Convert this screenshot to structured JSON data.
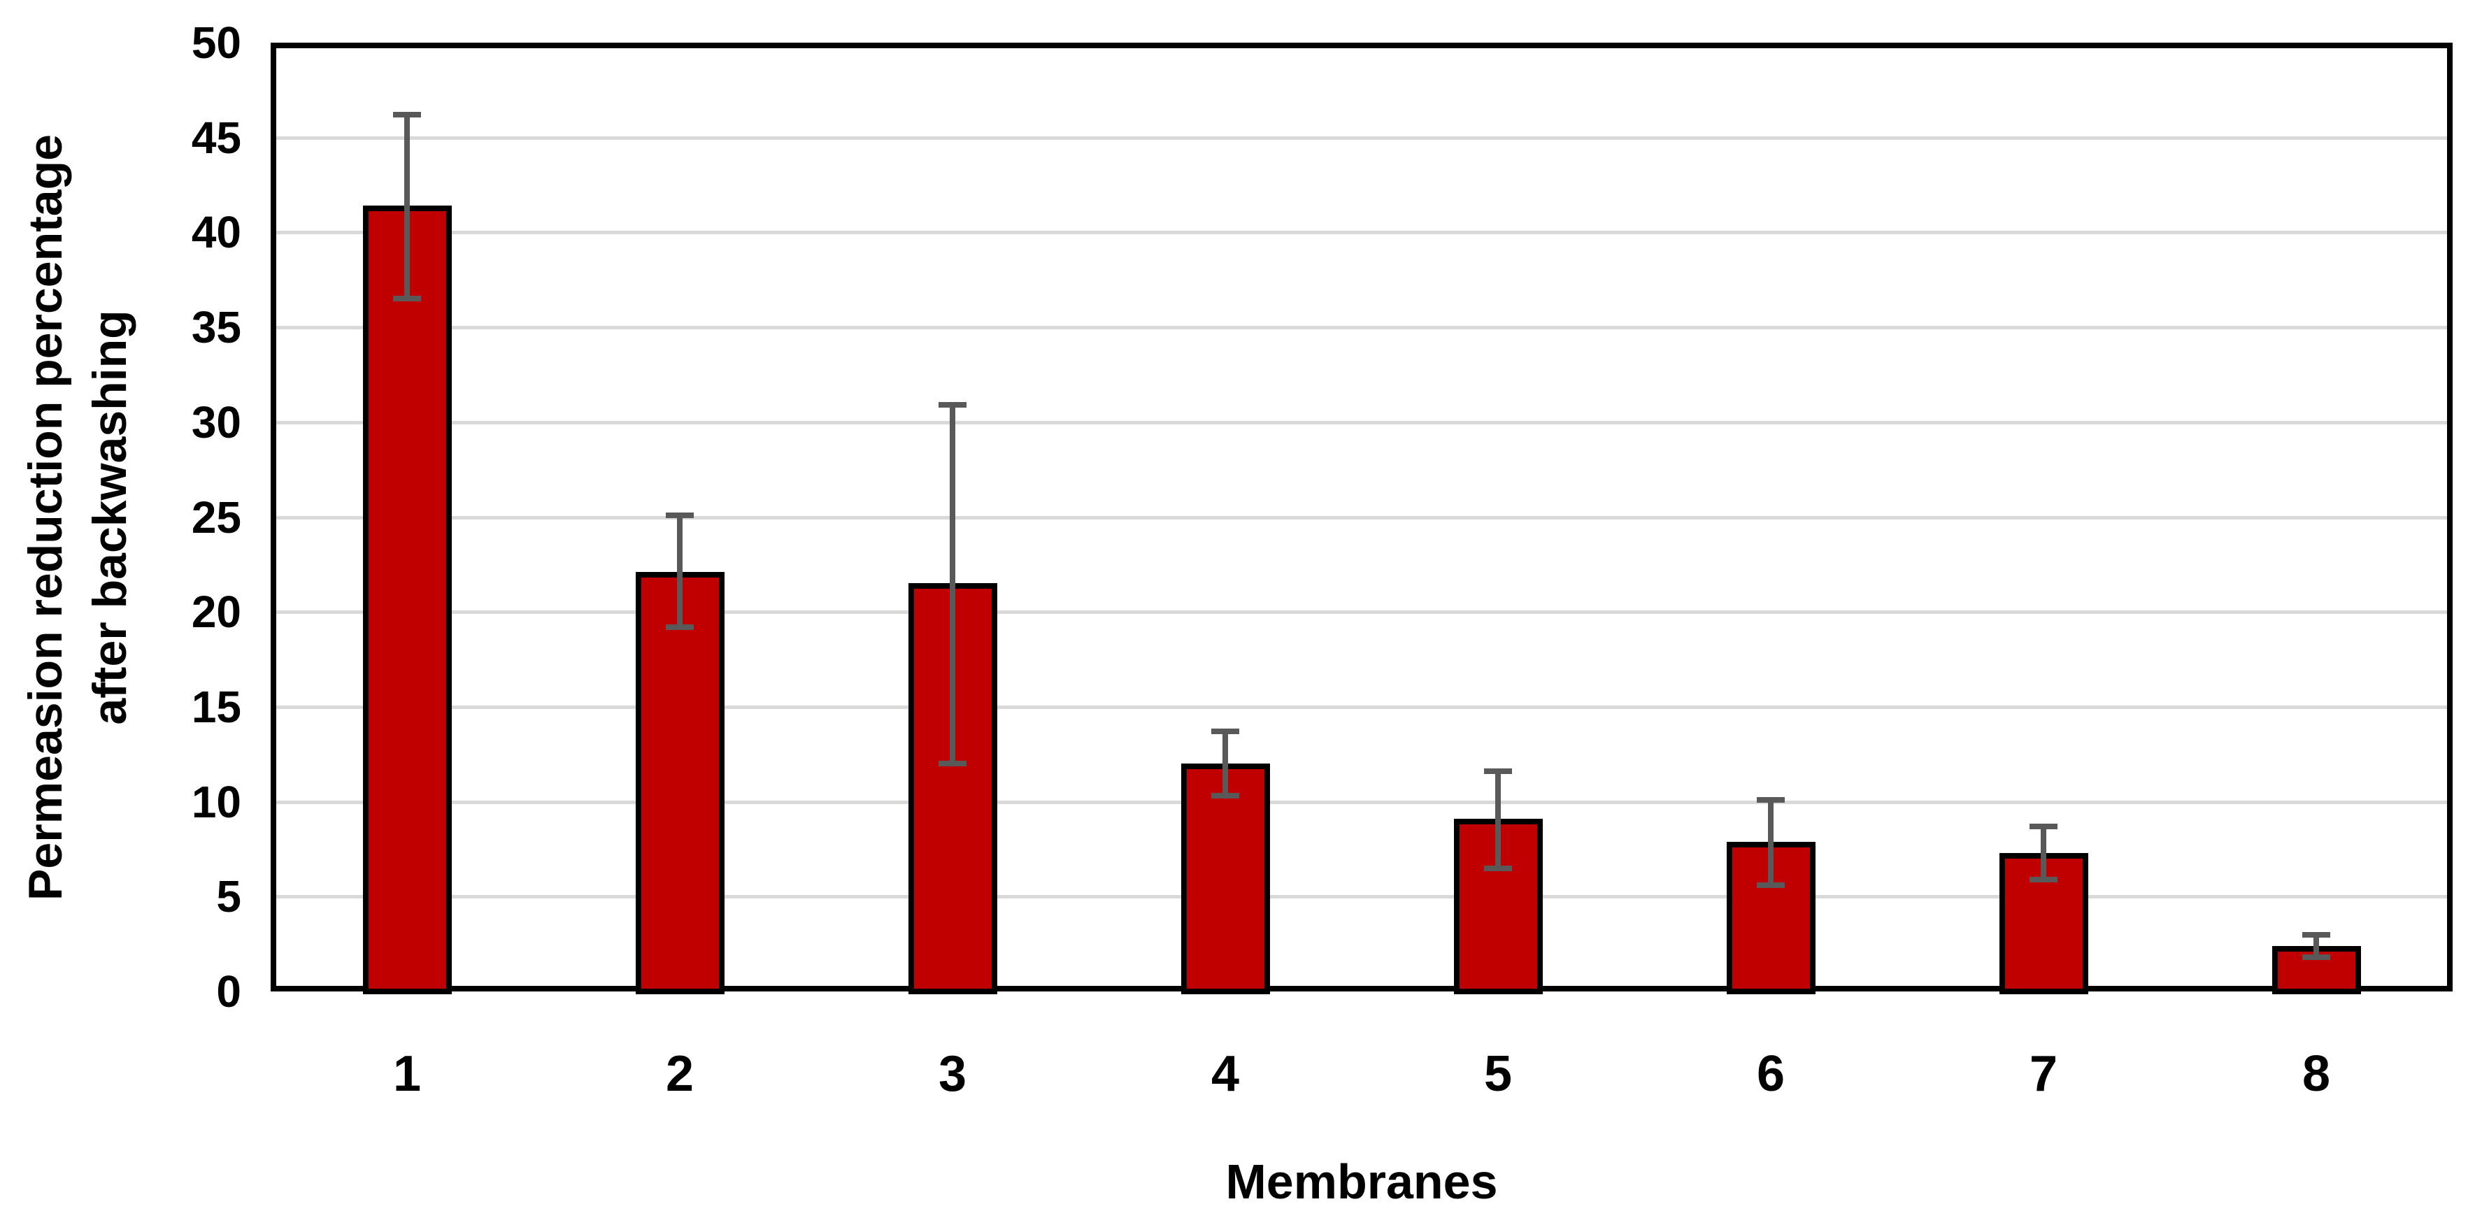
{
  "chart_data": {
    "type": "bar",
    "title": "",
    "xlabel": "Membranes",
    "ylabel": "Permeasion reduction percentage after backwashing",
    "ylabel_lines": [
      "Permeasion reduction percentage",
      "after backwashing"
    ],
    "categories": [
      "1",
      "2",
      "3",
      "4",
      "5",
      "6",
      "7",
      "8"
    ],
    "values": [
      41.4,
      22.1,
      21.5,
      12.0,
      9.1,
      7.9,
      7.3,
      2.4
    ],
    "error_upper": [
      46.2,
      25.1,
      30.9,
      13.7,
      11.6,
      10.1,
      8.7,
      3.0
    ],
    "error_lower": [
      36.5,
      19.2,
      12.0,
      10.3,
      6.5,
      5.6,
      5.9,
      1.8
    ],
    "ylim": [
      0,
      50
    ],
    "ytick_step": 5,
    "yticks": [
      "0",
      "5",
      "10",
      "15",
      "20",
      "25",
      "30",
      "35",
      "40",
      "45",
      "50"
    ],
    "grid": true,
    "legend": "none",
    "colors": {
      "bar_fill": "#C00000",
      "bar_border": "#000000",
      "error_bar": "#595959",
      "gridline": "#D9D9D9",
      "axis": "#000000",
      "text": "#000000",
      "background": "#FFFFFF"
    }
  }
}
